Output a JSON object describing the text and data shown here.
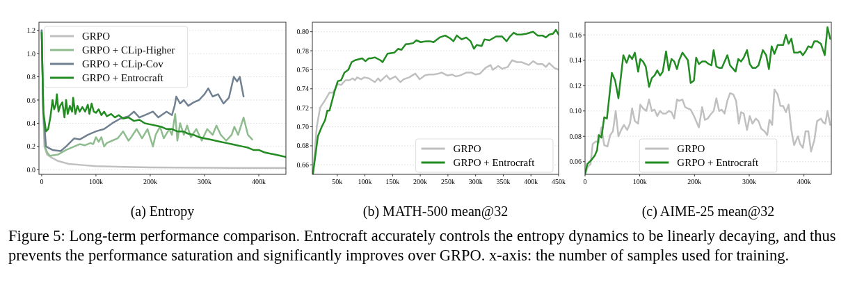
{
  "chart_data": [
    {
      "type": "line",
      "xlabel": "(a) Entropy",
      "xlim": [
        -5000,
        450000
      ],
      "ylim": [
        -0.04,
        1.27
      ],
      "grid": "y",
      "legend": "top left",
      "xticks": [
        {
          "value": 0,
          "label": "0"
        },
        {
          "value": 100000,
          "label": "100k"
        },
        {
          "value": 200000,
          "label": "200k"
        },
        {
          "value": 300000,
          "label": "300k"
        },
        {
          "value": 400000,
          "label": "400k"
        }
      ],
      "yticks": [
        {
          "value": 0,
          "label": "0.0"
        },
        {
          "value": 0.2,
          "label": "0.2"
        },
        {
          "value": 0.4,
          "label": "0.4"
        },
        {
          "value": 0.6,
          "label": "0.6"
        },
        {
          "value": 0.8,
          "label": "0.8"
        },
        {
          "value": 1,
          "label": "1.0"
        },
        {
          "value": 1.2,
          "label": "1.2"
        }
      ],
      "series": [
        {
          "name": "GRPO",
          "color": "#c0c0c0",
          "x": [
            0,
            3000,
            5000,
            10000,
            20000,
            30000,
            50000,
            75000,
            100000,
            150000,
            200000,
            250000,
            300000,
            350000,
            400000,
            450000
          ],
          "values": [
            1.2,
            0.5,
            0.2,
            0.13,
            0.1,
            0.075,
            0.05,
            0.04,
            0.03,
            0.025,
            0.02,
            0.018,
            0.017,
            0.016,
            0.015,
            0.015
          ]
        },
        {
          "name": "GRPO + CLip-Higher",
          "color": "#8fbc8f",
          "x": [
            0,
            3000,
            6000,
            10000,
            15000,
            30000,
            45000,
            55000,
            60000,
            70000,
            80000,
            90000,
            95000,
            100000,
            105000,
            110000,
            115000,
            120000,
            130000,
            140000,
            150000,
            160000,
            165000,
            175000,
            185000,
            195000,
            205000,
            210000,
            218000,
            225000,
            235000,
            240000,
            246000,
            250000,
            255000,
            262000,
            268000,
            275000,
            285000,
            295000,
            305000,
            315000,
            322000,
            330000,
            340000,
            350000,
            355000,
            362000,
            372000,
            380000,
            388000
          ],
          "values": [
            1.2,
            0.5,
            0.2,
            0.15,
            0.12,
            0.13,
            0.17,
            0.19,
            0.2,
            0.22,
            0.21,
            0.23,
            0.22,
            0.28,
            0.24,
            0.28,
            0.2,
            0.23,
            0.25,
            0.27,
            0.33,
            0.25,
            0.28,
            0.35,
            0.27,
            0.35,
            0.2,
            0.3,
            0.37,
            0.27,
            0.35,
            0.3,
            0.48,
            0.25,
            0.4,
            0.3,
            0.38,
            0.28,
            0.35,
            0.25,
            0.35,
            0.3,
            0.38,
            0.3,
            0.25,
            0.3,
            0.37,
            0.3,
            0.45,
            0.3,
            0.26
          ]
        },
        {
          "name": "GRPO + CLip-Cov",
          "color": "#708090",
          "x": [
            0,
            3000,
            8000,
            20000,
            35000,
            45000,
            60000,
            70000,
            85000,
            100000,
            115000,
            130000,
            145000,
            160000,
            170000,
            180000,
            195000,
            205000,
            215000,
            230000,
            240000,
            245000,
            248000,
            255000,
            262000,
            270000,
            280000,
            290000,
            300000,
            307000,
            315000,
            325000,
            335000,
            345000,
            354000,
            360000,
            365000,
            372000
          ],
          "values": [
            1.2,
            0.5,
            0.2,
            0.17,
            0.16,
            0.2,
            0.27,
            0.26,
            0.3,
            0.33,
            0.35,
            0.4,
            0.44,
            0.46,
            0.5,
            0.45,
            0.48,
            0.5,
            0.45,
            0.5,
            0.47,
            0.55,
            0.63,
            0.57,
            0.6,
            0.55,
            0.58,
            0.6,
            0.65,
            0.7,
            0.63,
            0.65,
            0.57,
            0.62,
            0.8,
            0.76,
            0.8,
            0.63
          ]
        },
        {
          "name": "GRPO + Entrocraft",
          "color": "#228b22",
          "x": [
            0,
            3000,
            8000,
            12000,
            16000,
            20000,
            23000,
            26000,
            28000,
            31000,
            34000,
            38000,
            42000,
            45000,
            48000,
            52000,
            56000,
            58000,
            62000,
            66000,
            70000,
            75000,
            80000,
            85000,
            88000,
            92000,
            96000,
            100000,
            105000,
            110000,
            115000,
            120000,
            128000,
            135000,
            142000,
            150000,
            160000,
            170000,
            180000,
            190000,
            200000,
            210000,
            220000,
            230000,
            240000,
            250000,
            260000,
            270000,
            280000,
            290000,
            300000,
            310000,
            320000,
            330000,
            340000,
            350000,
            360000,
            370000,
            380000,
            390000,
            400000,
            410000,
            420000,
            430000,
            440000,
            450000
          ],
          "values": [
            1.18,
            0.5,
            0.33,
            0.35,
            0.45,
            0.6,
            0.52,
            0.56,
            0.65,
            0.5,
            0.55,
            0.58,
            0.45,
            0.6,
            0.48,
            0.55,
            0.5,
            0.62,
            0.48,
            0.55,
            0.5,
            0.54,
            0.5,
            0.56,
            0.48,
            0.57,
            0.5,
            0.49,
            0.52,
            0.47,
            0.5,
            0.46,
            0.48,
            0.45,
            0.47,
            0.44,
            0.45,
            0.42,
            0.43,
            0.4,
            0.39,
            0.38,
            0.37,
            0.35,
            0.35,
            0.33,
            0.33,
            0.31,
            0.3,
            0.28,
            0.27,
            0.26,
            0.25,
            0.24,
            0.23,
            0.22,
            0.21,
            0.2,
            0.19,
            0.17,
            0.17,
            0.15,
            0.14,
            0.13,
            0.12,
            0.11
          ]
        }
      ]
    },
    {
      "type": "line",
      "xlabel": "(b) MATH-500 mean@32",
      "xlim": [
        5000,
        450000
      ],
      "ylim": [
        0.65,
        0.81
      ],
      "grid": "y",
      "legend": "bottom right",
      "xticks": [
        {
          "value": 50000,
          "label": "50k"
        },
        {
          "value": 100000,
          "label": "100k"
        },
        {
          "value": 150000,
          "label": "150k"
        },
        {
          "value": 200000,
          "label": "200k"
        },
        {
          "value": 250000,
          "label": "250k"
        },
        {
          "value": 300000,
          "label": "300k"
        },
        {
          "value": 350000,
          "label": "350k"
        },
        {
          "value": 400000,
          "label": "400k"
        },
        {
          "value": 450000,
          "label": "450k"
        }
      ],
      "yticks": [
        {
          "value": 0.66,
          "label": "0.66"
        },
        {
          "value": 0.68,
          "label": "0.68"
        },
        {
          "value": 0.7,
          "label": "0.70"
        },
        {
          "value": 0.72,
          "label": "0.72"
        },
        {
          "value": 0.74,
          "label": "0.74"
        },
        {
          "value": 0.76,
          "label": "0.76"
        },
        {
          "value": 0.78,
          "label": "0.78"
        },
        {
          "value": 0.8,
          "label": "0.80"
        }
      ],
      "series": [
        {
          "name": "GRPO",
          "color": "#c0c0c0",
          "x": [
            6000,
            13000,
            19000,
            28000,
            36000,
            42000,
            51000,
            57000,
            65000,
            72000,
            78000,
            82000,
            86000,
            93000,
            99000,
            107000,
            118000,
            124000,
            128000,
            139000,
            145000,
            155000,
            164000,
            170000,
            180000,
            191000,
            199000,
            208000,
            216000,
            224000,
            233000,
            239000,
            249000,
            258000,
            264000,
            272000,
            283000,
            293000,
            300000,
            308000,
            318000,
            327000,
            331000,
            341000,
            348000,
            358000,
            366000,
            375000,
            383000,
            396000,
            404000,
            412000,
            421000,
            427000,
            433000,
            442000,
            450000
          ],
          "values": [
            0.65,
            0.7,
            0.72,
            0.728,
            0.736,
            0.736,
            0.745,
            0.744,
            0.749,
            0.749,
            0.751,
            0.749,
            0.752,
            0.75,
            0.752,
            0.751,
            0.747,
            0.751,
            0.748,
            0.754,
            0.75,
            0.753,
            0.747,
            0.75,
            0.752,
            0.756,
            0.75,
            0.754,
            0.755,
            0.755,
            0.756,
            0.757,
            0.754,
            0.755,
            0.753,
            0.754,
            0.757,
            0.757,
            0.755,
            0.756,
            0.762,
            0.765,
            0.76,
            0.764,
            0.761,
            0.763,
            0.77,
            0.768,
            0.768,
            0.765,
            0.769,
            0.766,
            0.766,
            0.763,
            0.767,
            0.762,
            0.76
          ]
        },
        {
          "name": "GRPO + Entrocraft",
          "color": "#228b22",
          "x": [
            6000,
            15000,
            22000,
            28000,
            32000,
            36000,
            45000,
            51000,
            57000,
            63000,
            70000,
            76000,
            82000,
            95000,
            101000,
            107000,
            111000,
            118000,
            128000,
            132000,
            141000,
            153000,
            160000,
            166000,
            174000,
            178000,
            187000,
            193000,
            201000,
            210000,
            218000,
            224000,
            235000,
            245000,
            254000,
            260000,
            266000,
            275000,
            283000,
            291000,
            297000,
            302000,
            311000,
            316000,
            325000,
            337000,
            348000,
            356000,
            362000,
            369000,
            375000,
            383000,
            392000,
            404000,
            412000,
            421000,
            427000,
            433000,
            440000,
            445000,
            450000
          ],
          "values": [
            0.65,
            0.69,
            0.7,
            0.707,
            0.717,
            0.717,
            0.737,
            0.748,
            0.749,
            0.757,
            0.76,
            0.768,
            0.77,
            0.772,
            0.769,
            0.772,
            0.772,
            0.773,
            0.77,
            0.768,
            0.777,
            0.778,
            0.782,
            0.781,
            0.787,
            0.787,
            0.788,
            0.791,
            0.789,
            0.79,
            0.79,
            0.789,
            0.794,
            0.796,
            0.793,
            0.79,
            0.796,
            0.792,
            0.794,
            0.79,
            0.782,
            0.786,
            0.785,
            0.792,
            0.791,
            0.795,
            0.795,
            0.79,
            0.795,
            0.799,
            0.797,
            0.797,
            0.798,
            0.8,
            0.796,
            0.796,
            0.794,
            0.797,
            0.798,
            0.802,
            0.797
          ]
        }
      ]
    },
    {
      "type": "line",
      "xlabel": "(c) AIME-25 mean@32",
      "xlim": [
        0,
        450000
      ],
      "ylim": [
        0.05,
        0.17
      ],
      "grid": "y",
      "legend": "bottom",
      "xticks": [
        {
          "value": 0,
          "label": "0"
        },
        {
          "value": 100000,
          "label": "100k"
        },
        {
          "value": 200000,
          "label": "200k"
        },
        {
          "value": 300000,
          "label": "300k"
        },
        {
          "value": 400000,
          "label": "400k"
        }
      ],
      "yticks": [
        {
          "value": 0.06,
          "label": "0.06"
        },
        {
          "value": 0.08,
          "label": "0.08"
        },
        {
          "value": 0.1,
          "label": "0.10"
        },
        {
          "value": 0.12,
          "label": "0.12"
        },
        {
          "value": 0.14,
          "label": "0.14"
        },
        {
          "value": 0.16,
          "label": "0.16"
        }
      ],
      "annotations": [
        "Figure 5: Long-term performance comparison. Entrocraft accurately controls the entropy dynamics to be linearly decaying, and thus prevents the performance saturation and significantly improves over GRPO. x-axis: the number of samples used for training."
      ],
      "series": [
        {
          "name": "GRPO",
          "color": "#c0c0c0",
          "x": [
            0,
            5000,
            10000,
            14000,
            20000,
            25000,
            30000,
            35000,
            41000,
            46000,
            51000,
            56000,
            61000,
            66000,
            71000,
            77000,
            82000,
            86000,
            91000,
            97000,
            101000,
            106000,
            112000,
            117000,
            122000,
            127000,
            132000,
            137000,
            142000,
            148000,
            153000,
            158000,
            163000,
            168000,
            172000,
            178000,
            183000,
            188000,
            193000,
            199000,
            203000,
            208000,
            214000,
            219000,
            224000,
            229000,
            235000,
            240000,
            245000,
            250000,
            255000,
            260000,
            265000,
            271000,
            276000,
            281000,
            285000,
            290000,
            296000,
            301000,
            306000,
            312000,
            317000,
            322000,
            328000,
            333000,
            337000,
            342000,
            346000,
            352000,
            357000,
            362000,
            367000,
            372000,
            377000,
            382000,
            389000,
            393000,
            398000,
            403000,
            408000,
            413000,
            419000,
            424000,
            431000,
            435000,
            439000,
            443000,
            448000
          ],
          "values": [
            0.05,
            0.056,
            0.058,
            0.074,
            0.076,
            0.075,
            0.087,
            0.073,
            0.072,
            0.081,
            0.084,
            0.1,
            0.08,
            0.085,
            0.089,
            0.085,
            0.09,
            0.102,
            0.092,
            0.09,
            0.105,
            0.102,
            0.1,
            0.109,
            0.1,
            0.101,
            0.096,
            0.1,
            0.098,
            0.098,
            0.1,
            0.099,
            0.094,
            0.109,
            0.108,
            0.109,
            0.103,
            0.102,
            0.101,
            0.096,
            0.092,
            0.087,
            0.103,
            0.093,
            0.094,
            0.097,
            0.1,
            0.11,
            0.1,
            0.101,
            0.098,
            0.108,
            0.114,
            0.113,
            0.108,
            0.09,
            0.099,
            0.098,
            0.085,
            0.096,
            0.09,
            0.094,
            0.092,
            0.086,
            0.084,
            0.081,
            0.093,
            0.089,
            0.117,
            0.113,
            0.104,
            0.104,
            0.099,
            0.105,
            0.085,
            0.073,
            0.08,
            0.074,
            0.071,
            0.084,
            0.084,
            0.068,
            0.077,
            0.092,
            0.094,
            0.091,
            0.09,
            0.1,
            0.089
          ]
        },
        {
          "name": "GRPO + Entrocraft",
          "color": "#228b22",
          "x": [
            0,
            4000,
            11000,
            18000,
            22000,
            25000,
            30000,
            35000,
            40000,
            49000,
            55000,
            61000,
            70000,
            76000,
            81000,
            86000,
            91000,
            97000,
            101000,
            106000,
            111000,
            117000,
            122000,
            127000,
            132000,
            137000,
            142000,
            148000,
            153000,
            158000,
            163000,
            168000,
            172000,
            178000,
            183000,
            188000,
            193000,
            199000,
            203000,
            208000,
            214000,
            220000,
            226000,
            231000,
            235000,
            240000,
            245000,
            250000,
            260000,
            265000,
            275000,
            280000,
            285000,
            290000,
            296000,
            301000,
            306000,
            312000,
            317000,
            325000,
            331000,
            336000,
            341000,
            346000,
            352000,
            357000,
            362000,
            367000,
            372000,
            377000,
            382000,
            389000,
            393000,
            398000,
            403000,
            408000,
            414000,
            419000,
            424000,
            431000,
            438000,
            443000,
            448000
          ],
          "values": [
            0.05,
            0.058,
            0.061,
            0.065,
            0.069,
            0.081,
            0.079,
            0.095,
            0.094,
            0.13,
            0.124,
            0.11,
            0.144,
            0.138,
            0.144,
            0.141,
            0.146,
            0.131,
            0.141,
            0.139,
            0.135,
            0.119,
            0.126,
            0.128,
            0.132,
            0.128,
            0.131,
            0.147,
            0.132,
            0.141,
            0.139,
            0.133,
            0.14,
            0.146,
            0.143,
            0.14,
            0.122,
            0.124,
            0.142,
            0.137,
            0.139,
            0.139,
            0.137,
            0.136,
            0.148,
            0.135,
            0.134,
            0.134,
            0.144,
            0.136,
            0.131,
            0.141,
            0.139,
            0.142,
            0.148,
            0.137,
            0.134,
            0.134,
            0.136,
            0.148,
            0.144,
            0.133,
            0.151,
            0.145,
            0.152,
            0.152,
            0.152,
            0.16,
            0.153,
            0.157,
            0.146,
            0.146,
            0.147,
            0.144,
            0.147,
            0.151,
            0.15,
            0.155,
            0.155,
            0.153,
            0.144,
            0.166,
            0.157
          ]
        }
      ]
    }
  ]
}
